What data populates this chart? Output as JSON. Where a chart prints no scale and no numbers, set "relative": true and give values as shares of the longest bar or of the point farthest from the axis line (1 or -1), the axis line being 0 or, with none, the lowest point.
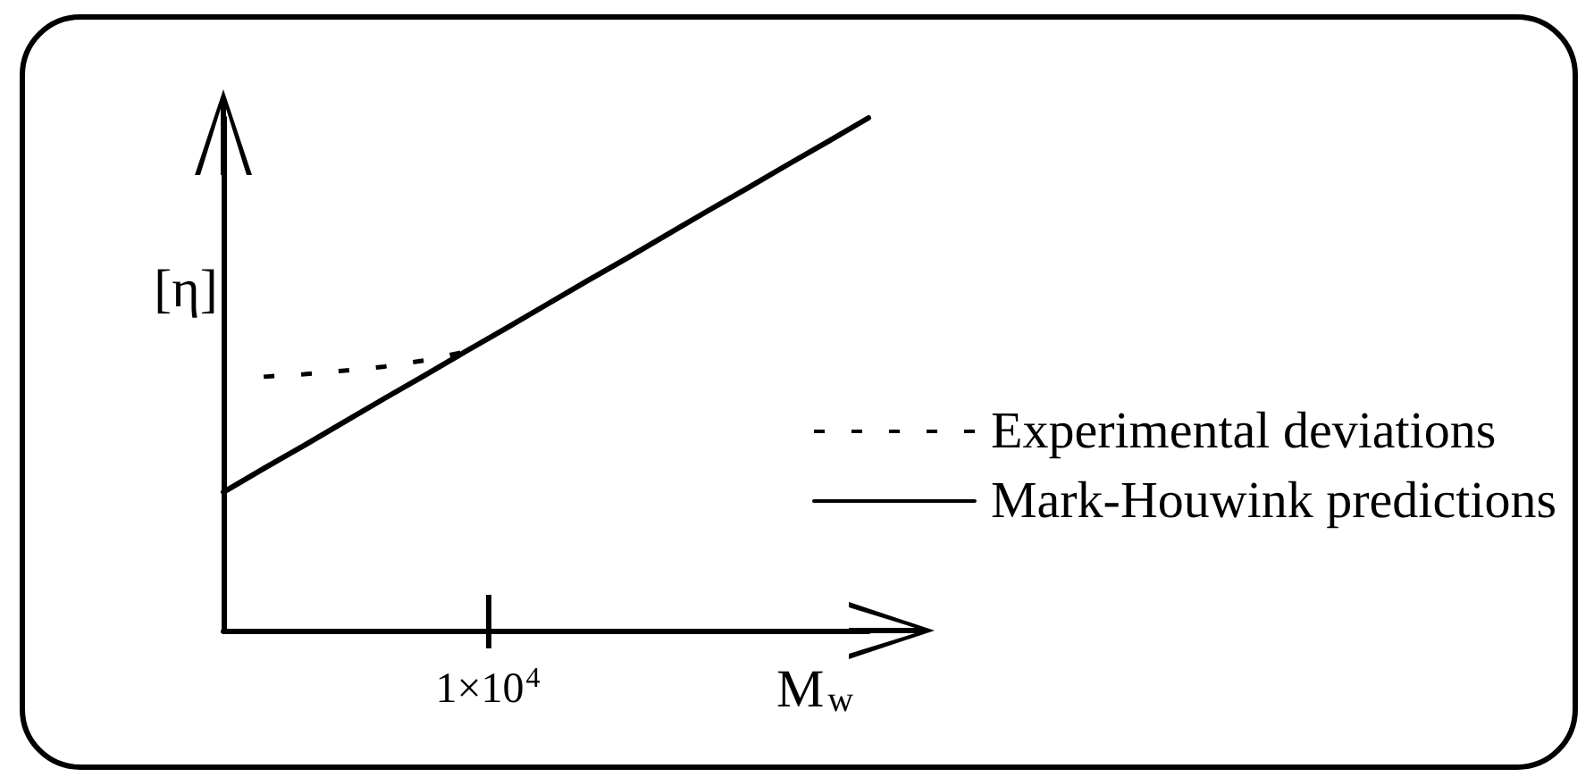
{
  "chart_data": {
    "type": "line",
    "xlabel": "M$_{w}$",
    "ylabel": "[η]",
    "relative": true,
    "legend": "right",
    "marker": "none",
    "annotations": [
      "1×10$^{4}$"
    ],
    "categories": [
      null,
      null,
      null,
      null,
      null,
      null,
      null,
      null,
      null,
      null,
      null,
      null,
      null,
      null,
      null,
      null,
      null
    ],
    "series": [
      {
        "name": "Experimental deviations",
        "color": "#000000",
        "line_style": "dashed",
        "values": [
          null,
          0.495,
          0.5,
          0.507,
          0.515,
          0.527,
          0.544,
          null,
          null,
          null,
          null,
          null,
          null,
          null,
          null,
          null,
          null
        ]
      },
      {
        "name": "Mark-Houwink predictions",
        "color": "#000000",
        "line_style": "solid",
        "values": [
          0.27,
          0.316,
          0.361,
          0.407,
          0.453,
          0.498,
          0.544,
          0.589,
          0.635,
          0.681,
          0.726,
          0.772,
          0.818,
          0.863,
          0.909,
          0.954,
          1
        ]
      }
    ]
  }
}
